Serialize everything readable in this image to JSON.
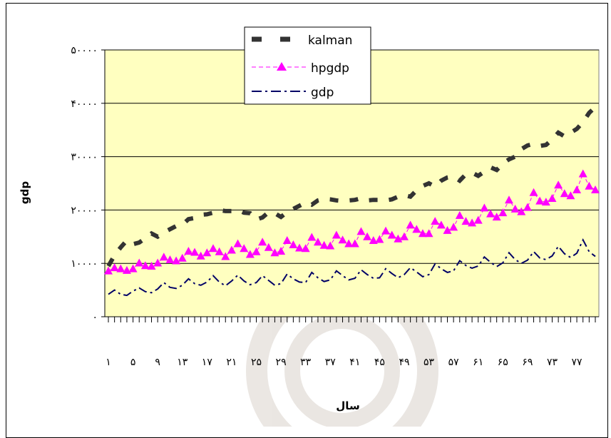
{
  "chart_data": {
    "type": "line",
    "title": "",
    "xlabel": "سال",
    "ylabel": "gdp",
    "ylim": [
      0,
      50000
    ],
    "xlim": [
      1,
      80
    ],
    "y_ticks": [
      {
        "value": 0,
        "label": "۰"
      },
      {
        "value": 10000,
        "label": "۱۰۰۰۰"
      },
      {
        "value": 20000,
        "label": "۲۰۰۰۰"
      },
      {
        "value": 30000,
        "label": "۳۰۰۰۰"
      },
      {
        "value": 40000,
        "label": "۴۰۰۰۰"
      },
      {
        "value": 50000,
        "label": "۵۰۰۰۰"
      }
    ],
    "x_ticks": [
      {
        "value": 1,
        "label": "۱"
      },
      {
        "value": 5,
        "label": "۵"
      },
      {
        "value": 9,
        "label": "۹"
      },
      {
        "value": 13,
        "label": "۱۳"
      },
      {
        "value": 17,
        "label": "۱۷"
      },
      {
        "value": 21,
        "label": "۲۱"
      },
      {
        "value": 25,
        "label": "۲۵"
      },
      {
        "value": 29,
        "label": "۲۹"
      },
      {
        "value": 33,
        "label": "۳۳"
      },
      {
        "value": 37,
        "label": "۳۷"
      },
      {
        "value": 41,
        "label": "۴۱"
      },
      {
        "value": 45,
        "label": "۴۵"
      },
      {
        "value": 49,
        "label": "۴۹"
      },
      {
        "value": 53,
        "label": "۵۳"
      },
      {
        "value": 57,
        "label": "۵۷"
      },
      {
        "value": 61,
        "label": "۶۱"
      },
      {
        "value": 65,
        "label": "۶۵"
      },
      {
        "value": 69,
        "label": "۶۹"
      },
      {
        "value": 73,
        "label": "۷۳"
      },
      {
        "value": 77,
        "label": "۷۷"
      }
    ],
    "grid": "horizontal",
    "legend_position": "top-center",
    "plot_background": "#ffffc0",
    "series": [
      {
        "name": "kalman",
        "color": "#333333",
        "style": "dashed",
        "x": [
          1,
          2,
          3,
          4,
          5,
          6,
          7,
          8,
          9,
          10,
          11,
          12,
          13,
          14,
          15,
          16,
          17,
          18,
          19,
          20,
          21,
          22,
          23,
          24,
          25,
          26,
          27,
          28,
          29,
          30,
          31,
          32,
          33,
          34,
          35,
          36,
          37,
          38,
          39,
          40,
          41,
          42,
          43,
          44,
          45,
          46,
          47,
          48,
          49,
          50,
          51,
          52,
          53,
          54,
          55,
          56,
          57,
          58,
          59,
          60,
          61,
          62,
          63,
          64,
          65,
          66,
          67,
          68,
          69,
          70,
          71,
          72,
          73,
          74,
          75,
          76,
          77,
          78,
          79,
          80
        ],
        "values": [
          9500,
          11500,
          13000,
          14300,
          13600,
          13900,
          14700,
          15600,
          15000,
          15800,
          16400,
          17000,
          17200,
          18300,
          18500,
          19100,
          19200,
          19500,
          20000,
          19800,
          19800,
          20000,
          19500,
          19400,
          18200,
          18600,
          19600,
          19400,
          18700,
          19600,
          20200,
          20800,
          21400,
          21000,
          21800,
          22100,
          22000,
          21800,
          21700,
          21800,
          21900,
          22200,
          21800,
          21900,
          21900,
          21800,
          22000,
          22500,
          22800,
          22500,
          23700,
          24500,
          25000,
          24400,
          25500,
          26100,
          26300,
          25500,
          26700,
          27000,
          26400,
          27200,
          28000,
          27500,
          28700,
          29500,
          30000,
          31400,
          32100,
          32400,
          32000,
          32200,
          33200,
          34500,
          33800,
          34500,
          35200,
          36500,
          38200,
          39300
        ]
      },
      {
        "name": "hpgdp",
        "color": "#ff00ff",
        "style": "dashed-triangles",
        "x": [
          1,
          2,
          3,
          4,
          5,
          6,
          7,
          8,
          9,
          10,
          11,
          12,
          13,
          14,
          15,
          16,
          17,
          18,
          19,
          20,
          21,
          22,
          23,
          24,
          25,
          26,
          27,
          28,
          29,
          30,
          31,
          32,
          33,
          34,
          35,
          36,
          37,
          38,
          39,
          40,
          41,
          42,
          43,
          44,
          45,
          46,
          47,
          48,
          49,
          50,
          51,
          52,
          53,
          54,
          55,
          56,
          57,
          58,
          59,
          60,
          61,
          62,
          63,
          64,
          65,
          66,
          67,
          68,
          69,
          70,
          71,
          72,
          73,
          74,
          75,
          76,
          77,
          78,
          79,
          80
        ],
        "values": [
          8600,
          9200,
          9000,
          8700,
          9000,
          10100,
          9600,
          9500,
          10100,
          11200,
          10700,
          10500,
          11000,
          12300,
          12100,
          11400,
          12000,
          12800,
          12200,
          11300,
          12500,
          13700,
          12800,
          11700,
          12200,
          14000,
          13000,
          12000,
          12300,
          14300,
          13500,
          12900,
          12800,
          14900,
          14000,
          13400,
          13300,
          15300,
          14400,
          13700,
          13700,
          16000,
          15000,
          14300,
          14500,
          16100,
          15300,
          14600,
          15000,
          17200,
          16400,
          15600,
          15600,
          17900,
          17200,
          16200,
          16800,
          19000,
          17900,
          17600,
          18100,
          20400,
          19300,
          18700,
          19500,
          21900,
          20200,
          19700,
          20500,
          23300,
          21700,
          21500,
          22200,
          24700,
          23100,
          22700,
          23800,
          26800,
          24500,
          23800
        ]
      },
      {
        "name": "gdp",
        "color": "#000066",
        "style": "dash-dot",
        "x": [
          1,
          2,
          3,
          4,
          5,
          6,
          7,
          8,
          9,
          10,
          11,
          12,
          13,
          14,
          15,
          16,
          17,
          18,
          19,
          20,
          21,
          22,
          23,
          24,
          25,
          26,
          27,
          28,
          29,
          30,
          31,
          32,
          33,
          34,
          35,
          36,
          37,
          38,
          39,
          40,
          41,
          42,
          43,
          44,
          45,
          46,
          47,
          48,
          49,
          50,
          51,
          52,
          53,
          54,
          55,
          56,
          57,
          58,
          59,
          60,
          61,
          62,
          63,
          64,
          65,
          66,
          67,
          68,
          69,
          70,
          71,
          72,
          73,
          74,
          75,
          76,
          77,
          78,
          79,
          80
        ],
        "values": [
          4200,
          5000,
          4200,
          4000,
          4800,
          5400,
          4700,
          4500,
          5200,
          6400,
          5500,
          5300,
          5900,
          7100,
          6200,
          5900,
          6500,
          7700,
          6500,
          5800,
          6700,
          7800,
          6700,
          6000,
          6400,
          7700,
          6800,
          5900,
          6200,
          8000,
          7100,
          6500,
          6400,
          8300,
          7300,
          6600,
          6900,
          8600,
          7700,
          6900,
          7200,
          8800,
          7900,
          7200,
          7300,
          9000,
          8100,
          7300,
          7900,
          9200,
          8400,
          7500,
          7900,
          9900,
          9000,
          8300,
          8600,
          10500,
          9600,
          9100,
          9500,
          11200,
          10200,
          9400,
          10100,
          12000,
          10700,
          10000,
          10600,
          12200,
          11000,
          10700,
          11400,
          13200,
          11800,
          11100,
          11900,
          14400,
          12200,
          11300
        ]
      }
    ]
  }
}
